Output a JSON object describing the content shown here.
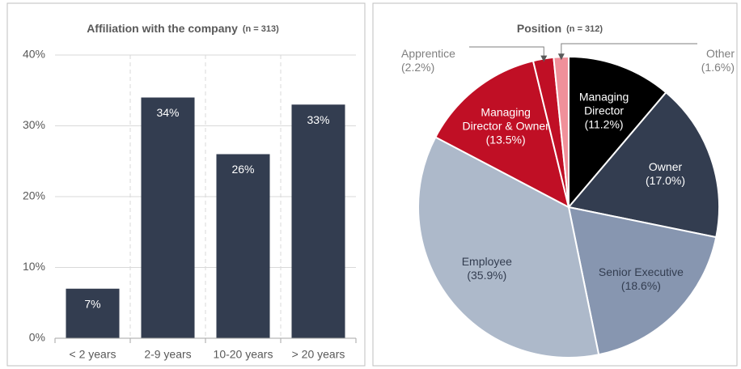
{
  "chart_data": [
    {
      "type": "bar",
      "title": "Affiliation with the company",
      "subtitle": "(n = 313)",
      "categories": [
        "< 2 years",
        "2-9 years",
        "10-20 years",
        "> 20 years"
      ],
      "values": [
        7,
        34,
        26,
        33
      ],
      "value_labels": [
        "7%",
        "34%",
        "26%",
        "33%"
      ],
      "color": "#333d50",
      "ylim": [
        0,
        40
      ],
      "yticks": [
        {
          "value": 0,
          "label": "0%"
        },
        {
          "value": 10,
          "label": "10%"
        },
        {
          "value": 20,
          "label": "20%"
        },
        {
          "value": 30,
          "label": "30%"
        },
        {
          "value": 40,
          "label": "40%"
        }
      ],
      "grid": true
    },
    {
      "type": "pie",
      "title": "Position",
      "subtitle": "(n = 312)",
      "categories": [
        "Managing Director",
        "Owner",
        "Senior Executive",
        "Employee",
        "Managing Director & Owner",
        "Apprentice",
        "Other"
      ],
      "values": [
        11.2,
        17.0,
        18.6,
        35.9,
        13.5,
        2.2,
        1.6
      ],
      "value_labels": [
        "(11.2%)",
        "(17.0%)",
        "(18.6%)",
        "(35.9%)",
        "(13.5%)",
        "(2.2%)",
        "(1.6%)"
      ],
      "colors": [
        "#000000",
        "#333d50",
        "#8796b0",
        "#adb9ca",
        "#c00f25",
        "#c00f25",
        "#f0909a"
      ]
    }
  ]
}
